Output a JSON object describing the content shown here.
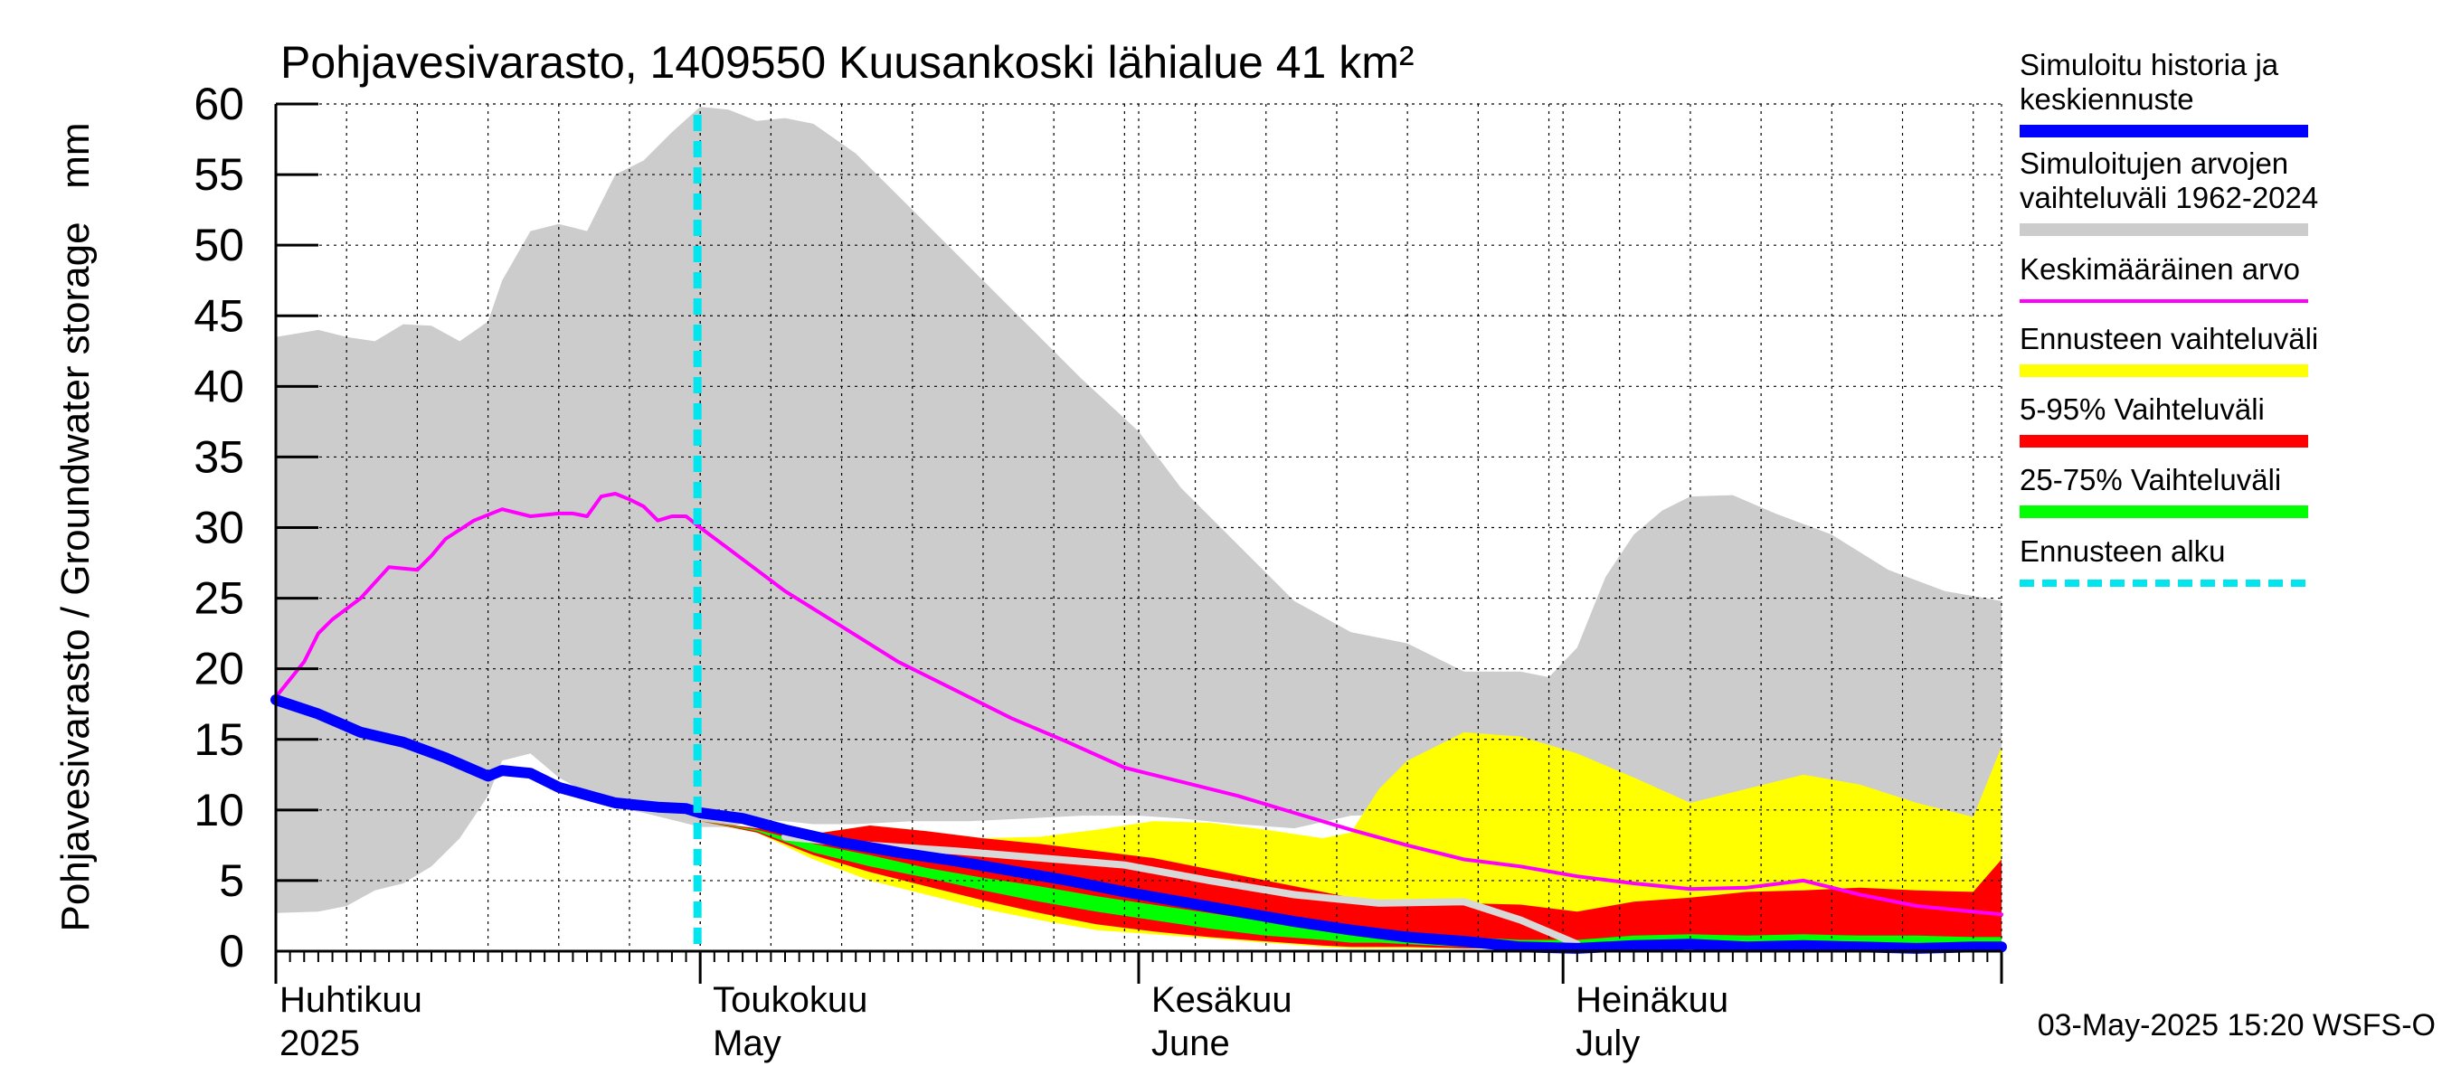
{
  "chart_data": {
    "type": "area",
    "title": "Pohjavesivarasto, 1409550 Kuusankoski lähialue 41 km²",
    "ylabel": "Pohjavesivarasto / Groundwater storage   mm",
    "ylim": [
      0,
      60
    ],
    "yticks": [
      0,
      5,
      10,
      15,
      20,
      25,
      30,
      35,
      40,
      45,
      50,
      55,
      60
    ],
    "x_start": "2025-04-01",
    "x_end": "2025-07-31",
    "forecast_start_day": 30,
    "month_labels": [
      {
        "day": 0,
        "fi": "Huhtikuu",
        "en": "2025"
      },
      {
        "day": 30,
        "fi": "Toukokuu",
        "en": "May"
      },
      {
        "day": 61,
        "fi": "Kesäkuu",
        "en": "June"
      },
      {
        "day": 91,
        "fi": "Heinäkuu",
        "en": "July"
      }
    ],
    "footer": "03-May-2025 15:20 WSFS-O",
    "legend": [
      {
        "key": "history",
        "label": "Simuloitu historia ja keskiennuste",
        "color": "#0000ff"
      },
      {
        "key": "range",
        "label": "Simuloitujen arvojen vaihteluväli 1962-2024",
        "color": "#cccccc"
      },
      {
        "key": "mean",
        "label": "Keskimääräinen arvo",
        "color": "#ff00ff"
      },
      {
        "key": "forecast_range",
        "label": "Ennusteen vaihteluväli",
        "color": "#ffff00"
      },
      {
        "key": "p5_95",
        "label": "5-95% Vaihteluväli",
        "color": "#ff0000"
      },
      {
        "key": "p25_75",
        "label": "25-75% Vaihteluväli",
        "color": "#00ff00"
      },
      {
        "key": "forecast_start",
        "label": "Ennusteen alku",
        "color": "#00e5ee"
      }
    ],
    "series": {
      "range_days": [
        0,
        3,
        5,
        7,
        9,
        11,
        13,
        15,
        16,
        18,
        20,
        22,
        24,
        26,
        28,
        30,
        32,
        34,
        36,
        38,
        41,
        45,
        49,
        53,
        57,
        61,
        64,
        68,
        72,
        76,
        80,
        84,
        88,
        90,
        92,
        94,
        96,
        98,
        100,
        103,
        106,
        110,
        114,
        118,
        122
      ],
      "range_upper": [
        43.5,
        44,
        43.5,
        43.2,
        44.4,
        44.3,
        43.2,
        44.6,
        47.5,
        51,
        51.5,
        51,
        55,
        56,
        58,
        59.8,
        59.6,
        58.8,
        59,
        58.6,
        56.5,
        52.5,
        48.5,
        44.5,
        40.5,
        36.8,
        32.8,
        28.8,
        24.8,
        22.6,
        21.8,
        19.8,
        19.8,
        19.4,
        21.5,
        26.5,
        29.5,
        31.2,
        32.2,
        32.3,
        31,
        29.5,
        27,
        25.5,
        24.8
      ],
      "range_lower": [
        2.7,
        2.8,
        3.2,
        4.3,
        4.8,
        6,
        8,
        11,
        13.5,
        14,
        12.3,
        11.2,
        10.2,
        9.8,
        9.3,
        8.8,
        8.8,
        9.3,
        9.2,
        9,
        9,
        9.2,
        9.2,
        9.4,
        9.6,
        9.6,
        9.4,
        9,
        8.7,
        9.6,
        9.7,
        9.8,
        9.8,
        9.8,
        9.9,
        10,
        10,
        9.9,
        9.8,
        9.6,
        9.6,
        9.6,
        9.6,
        9.5,
        9.5
      ],
      "mean_days": [
        0,
        2,
        3,
        4,
        6,
        8,
        10,
        11,
        12,
        14,
        16,
        18,
        20,
        21,
        22,
        23,
        24,
        25,
        26,
        27,
        28,
        29,
        30,
        32,
        34,
        36,
        40,
        44,
        48,
        52,
        56,
        60,
        64,
        68,
        72,
        76,
        80,
        84,
        88,
        92,
        96,
        100,
        104,
        108,
        112,
        116,
        120,
        122
      ],
      "mean": [
        18,
        20.5,
        22.5,
        23.5,
        25,
        27.2,
        27,
        28,
        29.2,
        30.5,
        31.3,
        30.8,
        31,
        31,
        30.8,
        32.2,
        32.4,
        32,
        31.5,
        30.5,
        30.8,
        30.8,
        30,
        28.5,
        27,
        25.5,
        23,
        20.5,
        18.5,
        16.5,
        14.8,
        13,
        12,
        11,
        9.8,
        8.6,
        7.5,
        6.5,
        6,
        5.3,
        4.8,
        4.4,
        4.5,
        5,
        4,
        3.2,
        2.8,
        2.6
      ],
      "history_days": [
        0,
        3,
        6,
        9,
        12,
        15,
        16,
        18,
        20,
        24,
        27,
        29,
        30,
        33,
        36,
        40,
        44,
        48,
        52,
        56,
        60,
        64,
        68,
        72,
        76,
        80,
        84,
        88,
        92,
        96,
        100,
        104,
        108,
        112,
        116,
        120,
        122
      ],
      "history": [
        17.8,
        16.8,
        15.5,
        14.8,
        13.7,
        12.4,
        12.8,
        12.6,
        11.6,
        10.5,
        10.2,
        10.1,
        9.8,
        9.4,
        8.6,
        7.7,
        7,
        6.4,
        5.7,
        5,
        4.2,
        3.5,
        2.8,
        2.1,
        1.5,
        1,
        0.7,
        0.3,
        0.2,
        0.4,
        0.5,
        0.3,
        0.4,
        0.3,
        0.2,
        0.3,
        0.3
      ],
      "forecast_days": [
        30,
        34,
        38,
        42,
        46,
        50,
        54,
        58,
        62,
        66,
        70,
        74,
        76,
        78,
        80,
        84,
        88,
        92,
        96,
        100,
        104,
        108,
        112,
        116,
        120,
        122
      ],
      "fc_upper": [
        9.2,
        8.7,
        8.3,
        8.9,
        8.5,
        8,
        8.1,
        8.6,
        9.2,
        9.1,
        8.6,
        8,
        8.4,
        11.5,
        13.5,
        15.5,
        15.2,
        14,
        12.3,
        10.5,
        11.5,
        12.5,
        11.8,
        10.5,
        9.5,
        14.5
      ],
      "fc_lower": [
        9.2,
        8.4,
        6.5,
        5,
        4,
        3,
        2.2,
        1.5,
        1.2,
        0.9,
        0.6,
        0.3,
        0.2,
        0.2,
        0.2,
        0.2,
        0.2,
        0.2,
        0.2,
        0.2,
        0.2,
        0.2,
        0.2,
        0.2,
        0.2,
        0.2
      ],
      "p95": [
        9.2,
        8.7,
        8.3,
        8.9,
        8.5,
        8,
        7.6,
        7.1,
        6.6,
        5.8,
        5,
        4.2,
        3.8,
        3.6,
        3.2,
        3.4,
        3.3,
        2.8,
        3.5,
        3.8,
        4.2,
        4.3,
        4.5,
        4.3,
        4.2,
        6.5
      ],
      "p5": [
        9.2,
        8.4,
        6.8,
        5.6,
        4.6,
        3.6,
        2.7,
        1.9,
        1.4,
        1,
        0.7,
        0.4,
        0.3,
        0.3,
        0.3,
        0.2,
        0.2,
        0.2,
        0.2,
        0.2,
        0.2,
        0.2,
        0.2,
        0.2,
        0.2,
        0.2
      ],
      "p75": [
        9.2,
        8.6,
        7.6,
        6.8,
        5.9,
        5.2,
        4.6,
        3.9,
        3.3,
        2.7,
        2.1,
        1.7,
        1.5,
        1.3,
        1.2,
        1,
        0.8,
        0.8,
        1.1,
        1.2,
        1.1,
        1.2,
        1.1,
        1.1,
        1,
        1
      ],
      "p25": [
        9.2,
        8.5,
        7,
        6,
        5.2,
        4.3,
        3.5,
        2.8,
        2.2,
        1.6,
        1.1,
        0.8,
        0.6,
        0.6,
        0.5,
        0.3,
        0.2,
        0.2,
        0.3,
        0.3,
        0.3,
        0.3,
        0.3,
        0.3,
        0.3,
        0.3
      ],
      "grey_line_days": [
        36,
        42,
        48,
        54,
        60,
        66,
        72,
        78,
        84,
        88,
        92
      ],
      "grey_line": [
        8.1,
        7.5,
        7.1,
        6.6,
        6.1,
        5,
        4,
        3.4,
        3.5,
        2.2,
        0.5
      ]
    }
  }
}
